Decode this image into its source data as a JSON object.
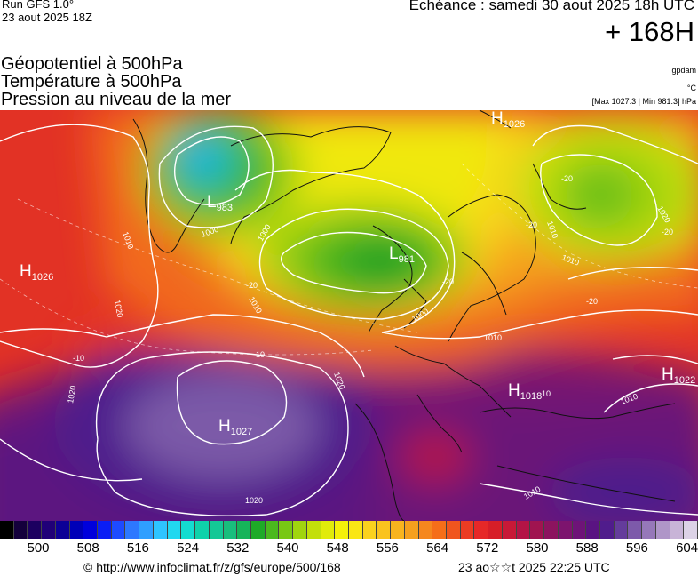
{
  "header": {
    "run": "Run GFS 1.0°",
    "run_date": "23 aout 2025 18Z",
    "echeance": "Echéance : samedi 30 aout 2025 18h UTC",
    "lead": "+ 168H",
    "titles": [
      "Géopotentiel à 500hPa",
      "Température à 500hPa",
      "Pression au niveau de la mer"
    ],
    "unit_geo": "gpdam",
    "unit_temp": "°C",
    "pressure_range": "[Max 1027.3 | Min 981.3] hPa"
  },
  "centers": [
    {
      "type": "L",
      "value": "983"
    },
    {
      "type": "L",
      "value": "981"
    },
    {
      "type": "H",
      "value": "1026"
    },
    {
      "type": "H",
      "value": "1026"
    },
    {
      "type": "H",
      "value": "1027"
    },
    {
      "type": "H",
      "value": "1018"
    },
    {
      "type": "H",
      "value": "1022"
    }
  ],
  "contour_labels": [
    "1010",
    "1000",
    "1000",
    "1000",
    "1010",
    "1020",
    "1020",
    "1020",
    "1020",
    "1010",
    "1010",
    "1010",
    "1010",
    "1010",
    "-20",
    "-20",
    "-20",
    "-20",
    "-20",
    "-20",
    "-10",
    "10",
    "10",
    "1020"
  ],
  "scale": {
    "ticks": [
      "500",
      "508",
      "516",
      "524",
      "532",
      "540",
      "548",
      "556",
      "564",
      "572",
      "580",
      "588",
      "596",
      "604"
    ],
    "colors": [
      "#000000",
      "#14003c",
      "#1c0060",
      "#200078",
      "#0d0096",
      "#0000b8",
      "#0000dc",
      "#0a1ef5",
      "#1e4bff",
      "#2d78ff",
      "#2f9fff",
      "#2ec4ff",
      "#21d8f0",
      "#14dcd0",
      "#0fd2aa",
      "#14c896",
      "#19be7d",
      "#16b45a",
      "#1eaa28",
      "#4bb91e",
      "#78c814",
      "#a0d50f",
      "#c3df0a",
      "#e1eb0a",
      "#f5f00a",
      "#fae614",
      "#fad21e",
      "#fac31e",
      "#f8b41e",
      "#f5a01e",
      "#f5871e",
      "#f56e19",
      "#f0551e",
      "#eb3c23",
      "#e62828",
      "#d71e28",
      "#c81937",
      "#b41446",
      "#a01450",
      "#8c145f",
      "#7d146e",
      "#6e1478",
      "#5a1482",
      "#501c8c",
      "#643c9b",
      "#7d5aaa",
      "#9678b9",
      "#af96c8",
      "#c8b4d7",
      "#dcd2e6"
    ]
  },
  "footer": {
    "url": "© http://www.infoclimat.fr/z/gfs/europe/500/168",
    "generated": "23 ao☆☆t 2025 22:25 UTC"
  }
}
